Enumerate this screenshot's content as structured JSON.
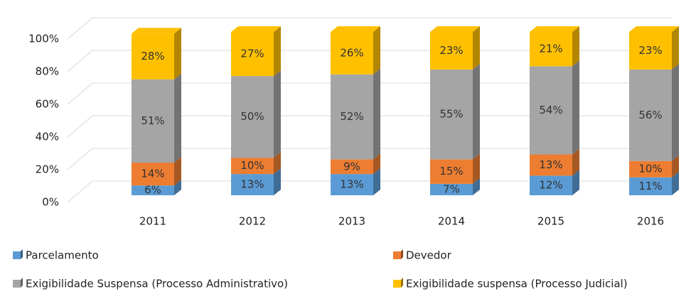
{
  "chart_data": {
    "type": "bar",
    "stacked": true,
    "categories": [
      "2011",
      "2012",
      "2013",
      "2014",
      "2015",
      "2016"
    ],
    "series": [
      {
        "name": "Parcelamento",
        "color": "#5b9bd5",
        "values": [
          6,
          13,
          13,
          7,
          12,
          11
        ],
        "value_labels": [
          "6%",
          "13%",
          "13%",
          "7%",
          "12%",
          "11%"
        ]
      },
      {
        "name": "Devedor",
        "color": "#ed7d31",
        "values": [
          14,
          10,
          9,
          15,
          13,
          10
        ],
        "value_labels": [
          "14%",
          "10%",
          "9%",
          "15%",
          "13%",
          "10%"
        ]
      },
      {
        "name": "Exigibilidade Suspensa (Processo Administrativo)",
        "color": "#a5a5a5",
        "values": [
          51,
          50,
          52,
          55,
          54,
          56
        ],
        "value_labels": [
          "51%",
          "50%",
          "52%",
          "55%",
          "54%",
          "56%"
        ]
      },
      {
        "name": "Exigibilidade suspensa (Processo Judicial)",
        "color": "#ffc000",
        "values": [
          28,
          27,
          26,
          23,
          21,
          23
        ],
        "value_labels": [
          "28%",
          "27%",
          "26%",
          "23%",
          "21%",
          "23%"
        ]
      }
    ],
    "ylim": [
      0,
      100
    ],
    "yticks": [
      {
        "value": 0,
        "label": "0%"
      },
      {
        "value": 20,
        "label": "20%"
      },
      {
        "value": 40,
        "label": "40%"
      },
      {
        "value": 60,
        "label": "60%"
      },
      {
        "value": 80,
        "label": "80%"
      },
      {
        "value": 100,
        "label": "100%"
      }
    ],
    "grid": true,
    "legend": "bottom"
  }
}
